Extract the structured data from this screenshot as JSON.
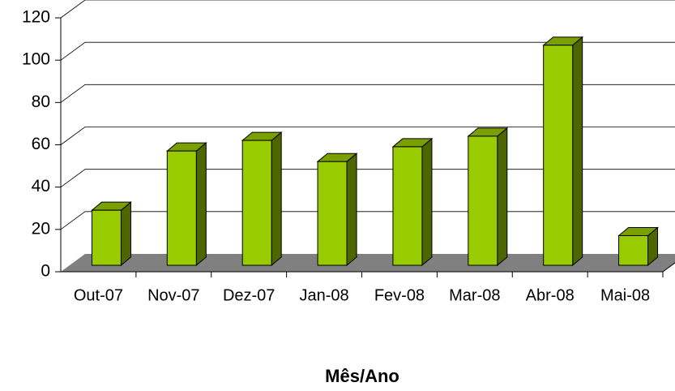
{
  "chart_data": {
    "type": "bar3d",
    "x_label": "Mês/Ano",
    "categories": [
      "Out-07",
      "Nov-07",
      "Dez-07",
      "Jan-08",
      "Fev-08",
      "Mar-08",
      "Abr-08",
      "Mai-08"
    ],
    "values": [
      26,
      54,
      59,
      49,
      56,
      61,
      104,
      14
    ],
    "color": "#99cc00",
    "ylim": [
      0,
      120
    ],
    "yticks": [
      0,
      20,
      40,
      60,
      80,
      100,
      120
    ],
    "grid": true
  }
}
